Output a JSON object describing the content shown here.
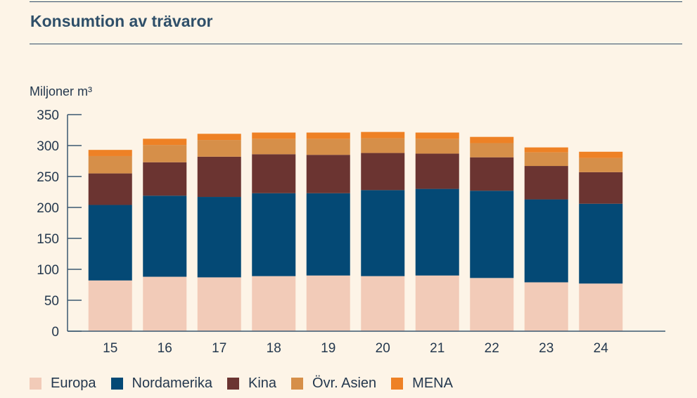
{
  "title": "Konsumtion av trävaror",
  "unit_label": "Miljoner m³",
  "chart_data": {
    "type": "bar",
    "stacked": true,
    "title": "Konsumtion av trävaror",
    "ylabel": "Miljoner m³",
    "xlabel": "",
    "categories": [
      "15",
      "16",
      "17",
      "18",
      "19",
      "20",
      "21",
      "22",
      "23",
      "24"
    ],
    "ylim": [
      0,
      350
    ],
    "yticks": [
      0,
      50,
      100,
      150,
      200,
      250,
      300,
      350
    ],
    "legend_position": "bottom",
    "grid": false,
    "series": [
      {
        "name": "Europa",
        "color": "#f2cbb8",
        "values": [
          82,
          88,
          87,
          89,
          90,
          89,
          90,
          86,
          79,
          77
        ]
      },
      {
        "name": "Nordamerika",
        "color": "#044975",
        "values": [
          122,
          131,
          130,
          134,
          133,
          139,
          140,
          141,
          134,
          129
        ]
      },
      {
        "name": "Kina",
        "color": "#6b3431",
        "values": [
          51,
          54,
          65,
          63,
          62,
          60,
          57,
          54,
          54,
          51
        ]
      },
      {
        "name": "Övr. Asien",
        "color": "#d68f49",
        "values": [
          28,
          28,
          27,
          25,
          26,
          24,
          24,
          23,
          22,
          23
        ]
      },
      {
        "name": "MENA",
        "color": "#ee8125",
        "values": [
          10,
          10,
          10,
          10,
          10,
          10,
          10,
          10,
          8,
          10
        ]
      }
    ]
  }
}
